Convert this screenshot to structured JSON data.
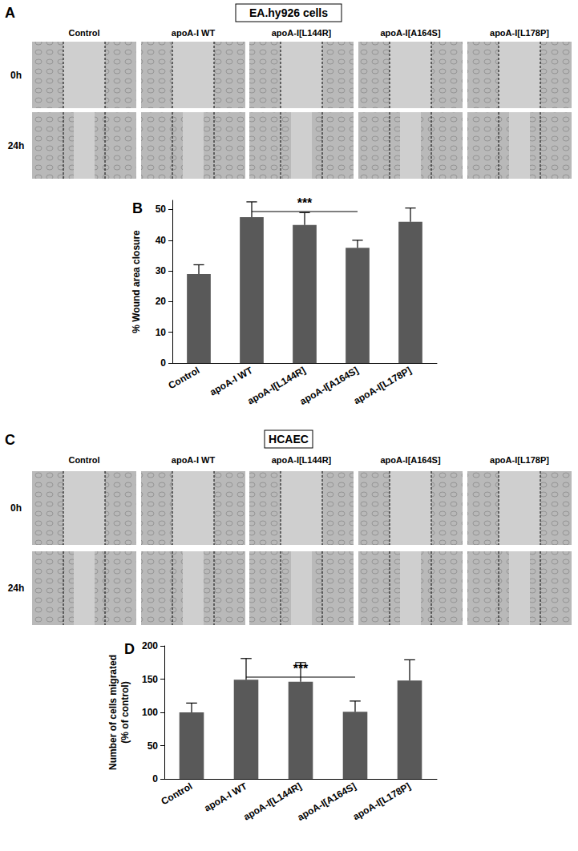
{
  "figure": {
    "image_panels": [
      {
        "letter": "A",
        "title": "EA.hy926 cells",
        "columns": [
          "Control",
          "apoA-I WT",
          "apoA-I[L144R]",
          "apoA-I[A164S]",
          "apoA-I[L178P]"
        ],
        "rows": [
          "0h",
          "24h"
        ]
      },
      {
        "letter": "C",
        "title": "HCAEC",
        "columns": [
          "Control",
          "apoA-I WT",
          "apoA-I[L144R]",
          "apoA-I[A164S]",
          "apoA-I[L178P]"
        ],
        "rows": [
          "0h",
          "24h"
        ]
      }
    ],
    "chart_panels": [
      "B",
      "D"
    ]
  },
  "chart_data": [
    {
      "type": "bar",
      "y_label": "% Wound area closure",
      "categories": [
        "Control",
        "apoA-I WT",
        "apoA-I[L144R]",
        "apoA-I[A164S]",
        "apoA-I[L178P]"
      ],
      "values": [
        29,
        47.5,
        45,
        37.5,
        46
      ],
      "errors": [
        3,
        5,
        4,
        2.5,
        4.5
      ],
      "color": "#595959",
      "ylim": [
        0,
        53
      ],
      "yticks": [
        0,
        10,
        20,
        30,
        40,
        50
      ],
      "grid": false,
      "annotations": [
        {
          "text": "***",
          "from": "apoA-I WT",
          "to": "apoA-I[A164S]"
        }
      ]
    },
    {
      "type": "bar",
      "y_label": "Number of cells migrated\n(% of control)",
      "categories": [
        "Control",
        "apoA-I WT",
        "apoA-I[L144R]",
        "apoA-I[A164S]",
        "apoA-I[L178P]"
      ],
      "values": [
        100,
        149,
        146,
        101,
        148
      ],
      "errors": [
        14,
        32,
        29,
        16,
        31
      ],
      "color": "#595959",
      "ylim": [
        0,
        200
      ],
      "yticks": [
        0,
        50,
        100,
        150,
        200
      ],
      "grid": false,
      "annotations": [
        {
          "text": "***",
          "from": "apoA-I WT",
          "to": "apoA-I[A164S]"
        }
      ]
    }
  ]
}
